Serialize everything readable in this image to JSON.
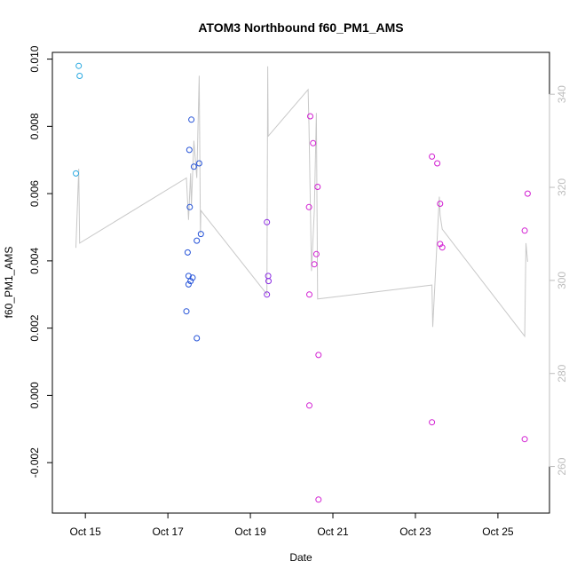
{
  "chart_data": {
    "type": "scatter",
    "title": "ATOM3 Northbound f60_PM1_AMS",
    "xlabel": "Date",
    "ylabel": "f60_PM1_AMS",
    "x_unit": "days in October",
    "xlim": [
      14.2,
      26.25
    ],
    "ylim": [
      -0.0035,
      0.0102
    ],
    "y2lim": [
      250,
      349
    ],
    "x_ticks": [
      {
        "value": 15,
        "label": "Oct 15"
      },
      {
        "value": 17,
        "label": "Oct 17"
      },
      {
        "value": 19,
        "label": "Oct 19"
      },
      {
        "value": 21,
        "label": "Oct 21"
      },
      {
        "value": 23,
        "label": "Oct 23"
      },
      {
        "value": 25,
        "label": "Oct 25"
      }
    ],
    "y_ticks": [
      {
        "value": -0.002,
        "label": "-0.002"
      },
      {
        "value": 0.0,
        "label": "0.000"
      },
      {
        "value": 0.002,
        "label": "0.002"
      },
      {
        "value": 0.004,
        "label": "0.004"
      },
      {
        "value": 0.006,
        "label": "0.006"
      },
      {
        "value": 0.008,
        "label": "0.008"
      },
      {
        "value": 0.01,
        "label": "0.010"
      }
    ],
    "y2_ticks": [
      {
        "value": 260,
        "label": "260"
      },
      {
        "value": 280,
        "label": "280"
      },
      {
        "value": 300,
        "label": "300"
      },
      {
        "value": 320,
        "label": "320"
      },
      {
        "value": 340,
        "label": "340"
      }
    ],
    "grid": false,
    "colors": {
      "cyan": "#29a9e1",
      "blue": "#2452d8",
      "violet": "#8b2be2",
      "magenta": "#d21ed2",
      "line": "#c8c8c8",
      "right_axis": "#bdbdbd"
    },
    "points": [
      {
        "x": 14.77,
        "y": 0.0066,
        "color": "cyan"
      },
      {
        "x": 14.84,
        "y": 0.0098,
        "color": "cyan"
      },
      {
        "x": 14.86,
        "y": 0.0095,
        "color": "cyan"
      },
      {
        "x": 17.45,
        "y": 0.0025,
        "color": "blue"
      },
      {
        "x": 17.48,
        "y": 0.00425,
        "color": "blue"
      },
      {
        "x": 17.5,
        "y": 0.0033,
        "color": "blue"
      },
      {
        "x": 17.5,
        "y": 0.00355,
        "color": "blue"
      },
      {
        "x": 17.52,
        "y": 0.0073,
        "color": "blue"
      },
      {
        "x": 17.53,
        "y": 0.0056,
        "color": "blue"
      },
      {
        "x": 17.55,
        "y": 0.0034,
        "color": "blue"
      },
      {
        "x": 17.57,
        "y": 0.0082,
        "color": "blue"
      },
      {
        "x": 17.6,
        "y": 0.0035,
        "color": "blue"
      },
      {
        "x": 17.63,
        "y": 0.0068,
        "color": "blue"
      },
      {
        "x": 17.7,
        "y": 0.0046,
        "color": "blue"
      },
      {
        "x": 17.7,
        "y": 0.0017,
        "color": "blue"
      },
      {
        "x": 17.76,
        "y": 0.0069,
        "color": "blue"
      },
      {
        "x": 17.8,
        "y": 0.0048,
        "color": "blue"
      },
      {
        "x": 19.4,
        "y": 0.00515,
        "color": "violet"
      },
      {
        "x": 19.4,
        "y": 0.003,
        "color": "violet"
      },
      {
        "x": 19.43,
        "y": 0.00355,
        "color": "violet"
      },
      {
        "x": 19.44,
        "y": 0.0034,
        "color": "violet"
      },
      {
        "x": 20.42,
        "y": 0.0056,
        "color": "magenta"
      },
      {
        "x": 20.43,
        "y": 0.003,
        "color": "magenta"
      },
      {
        "x": 20.43,
        "y": -0.0003,
        "color": "magenta"
      },
      {
        "x": 20.45,
        "y": 0.0083,
        "color": "magenta"
      },
      {
        "x": 20.52,
        "y": 0.0075,
        "color": "magenta"
      },
      {
        "x": 20.55,
        "y": 0.0039,
        "color": "magenta"
      },
      {
        "x": 20.6,
        "y": 0.0042,
        "color": "magenta"
      },
      {
        "x": 20.63,
        "y": 0.0062,
        "color": "magenta"
      },
      {
        "x": 20.65,
        "y": 0.0012,
        "color": "magenta"
      },
      {
        "x": 20.65,
        "y": -0.0031,
        "color": "magenta"
      },
      {
        "x": 23.4,
        "y": 0.0071,
        "color": "magenta"
      },
      {
        "x": 23.4,
        "y": -0.0008,
        "color": "magenta"
      },
      {
        "x": 23.53,
        "y": 0.0069,
        "color": "magenta"
      },
      {
        "x": 23.6,
        "y": 0.0057,
        "color": "magenta"
      },
      {
        "x": 23.6,
        "y": 0.0045,
        "color": "magenta"
      },
      {
        "x": 23.65,
        "y": 0.0044,
        "color": "magenta"
      },
      {
        "x": 25.65,
        "y": 0.0049,
        "color": "magenta"
      },
      {
        "x": 25.65,
        "y": -0.0013,
        "color": "magenta"
      },
      {
        "x": 25.72,
        "y": 0.006,
        "color": "magenta"
      }
    ],
    "line": {
      "axis": "right",
      "color": "line",
      "points": [
        [
          14.77,
          307
        ],
        [
          14.84,
          324
        ],
        [
          14.86,
          308
        ],
        [
          17.45,
          322
        ],
        [
          17.5,
          313
        ],
        [
          17.55,
          323
        ],
        [
          17.57,
          316
        ],
        [
          17.63,
          330
        ],
        [
          17.7,
          322
        ],
        [
          17.76,
          344
        ],
        [
          17.79,
          310
        ],
        [
          17.8,
          315
        ],
        [
          19.4,
          297
        ],
        [
          19.42,
          346
        ],
        [
          19.43,
          331
        ],
        [
          20.4,
          341
        ],
        [
          20.42,
          333
        ],
        [
          20.48,
          302
        ],
        [
          20.55,
          315
        ],
        [
          20.6,
          336
        ],
        [
          20.63,
          296
        ],
        [
          23.4,
          299
        ],
        [
          23.42,
          290
        ],
        [
          23.58,
          318
        ],
        [
          23.6,
          314
        ],
        [
          23.65,
          311
        ],
        [
          25.65,
          288
        ],
        [
          25.68,
          308
        ],
        [
          25.72,
          304
        ]
      ]
    }
  }
}
